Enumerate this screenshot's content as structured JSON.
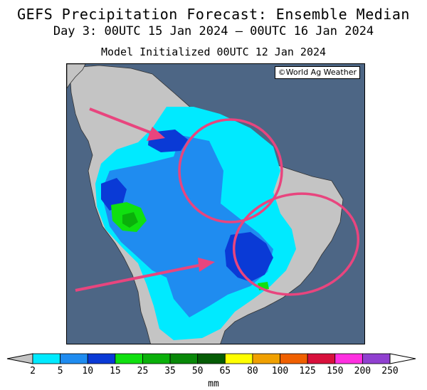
{
  "title": "GEFS Precipitation Forecast: Ensemble Median",
  "subtitle": "Day 3: 00UTC 15 Jan 2024 — 00UTC 16 Jan 2024",
  "init": "Model Initialized 00UTC 12 Jan 2024",
  "credit": "©World Ag Weather",
  "colors": {
    "ocean": "#4d6685",
    "land": "#c4c4c4",
    "annotation": "#e8457e"
  },
  "legend": {
    "unit": "mm",
    "bins": [
      {
        "label": "2",
        "color": "#00eaff"
      },
      {
        "label": "5",
        "color": "#1f8cf0"
      },
      {
        "label": "10",
        "color": "#0a3ad6"
      },
      {
        "label": "15",
        "color": "#10e010"
      },
      {
        "label": "25",
        "color": "#0ab00a"
      },
      {
        "label": "35",
        "color": "#088808"
      },
      {
        "label": "50",
        "color": "#055c05"
      },
      {
        "label": "65",
        "color": "#ffff00"
      },
      {
        "label": "80",
        "color": "#f0a000"
      },
      {
        "label": "100",
        "color": "#f06000"
      },
      {
        "label": "125",
        "color": "#d8103c"
      },
      {
        "label": "150",
        "color": "#ff30e0"
      },
      {
        "label": "200",
        "color": "#9040d0"
      },
      {
        "label": "250",
        "color": ""
      }
    ]
  },
  "annotations": [
    {
      "type": "arrow",
      "target": "northern Amazon / western Venezuela"
    },
    {
      "type": "arrow",
      "target": "central Brazil"
    },
    {
      "type": "circle",
      "target": "northern Brazil"
    },
    {
      "type": "circle",
      "target": "eastern Brazil"
    }
  ]
}
